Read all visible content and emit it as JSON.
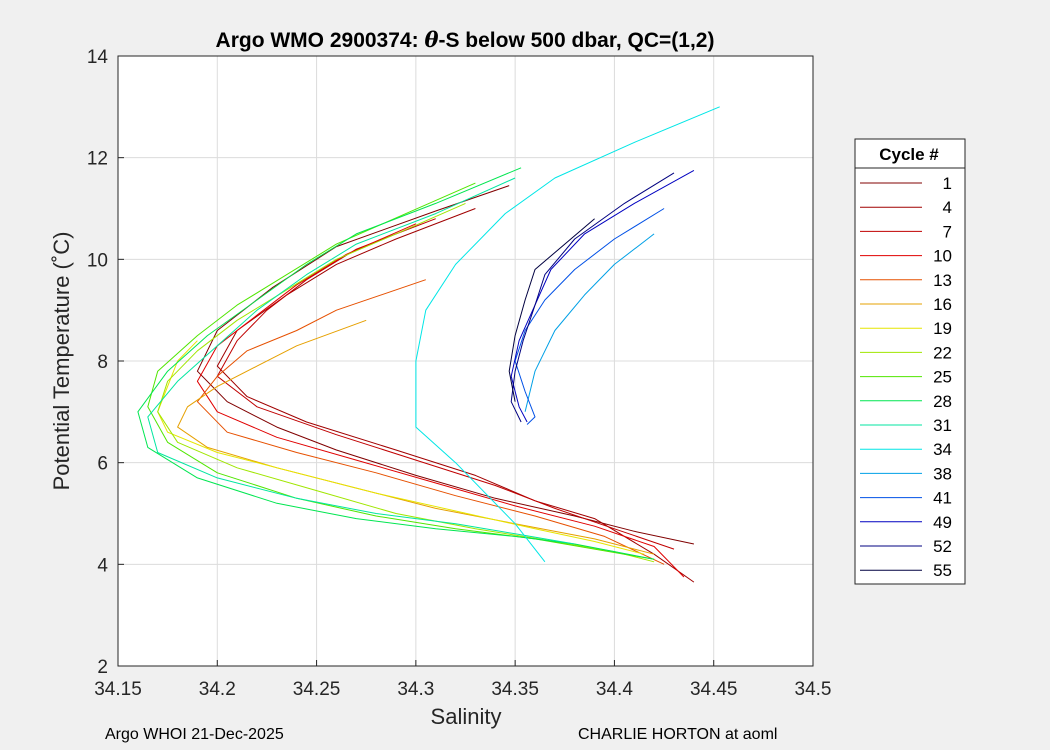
{
  "footer": {
    "left": "Argo WHOI 21-Dec-2025",
    "right": "CHARLIE HORTON at aoml"
  },
  "chart_data": {
    "type": "line",
    "title_prefix": "Argo WMO 2900374: ",
    "title_theta": "θ",
    "title_suffix": "-S below 500 dbar,  QC=(1,2)",
    "xlabel": "Salinity",
    "ylabel": "Potential Temperature (˚C)",
    "xlim": [
      34.15,
      34.5
    ],
    "ylim": [
      2,
      14
    ],
    "xticks": [
      "34.15",
      "34.2",
      "34.25",
      "34.3",
      "34.35",
      "34.4",
      "34.45",
      "34.5"
    ],
    "yticks": [
      "2",
      "4",
      "6",
      "8",
      "10",
      "12",
      "14"
    ],
    "grid": true,
    "legend": {
      "title": "Cycle #",
      "position": "right"
    },
    "series": [
      {
        "name": "1",
        "color": "#800000",
        "x": [
          34.347,
          34.31,
          34.26,
          34.228,
          34.2,
          34.19,
          34.205,
          34.23,
          34.26,
          34.3,
          34.34,
          34.38,
          34.41,
          34.44
        ],
        "y": [
          11.45,
          10.95,
          10.25,
          9.45,
          8.6,
          7.8,
          7.2,
          6.7,
          6.25,
          5.75,
          5.3,
          4.95,
          4.65,
          4.4
        ]
      },
      {
        "name": "4",
        "color": "#a00000",
        "x": [
          34.33,
          34.29,
          34.26,
          34.235,
          34.21,
          34.2,
          34.215,
          34.245,
          34.29,
          34.33,
          34.36,
          34.39,
          34.42,
          34.44
        ],
        "y": [
          11.0,
          10.4,
          9.9,
          9.3,
          8.6,
          7.9,
          7.3,
          6.8,
          6.25,
          5.75,
          5.25,
          4.9,
          4.2,
          3.65
        ]
      },
      {
        "name": "7",
        "color": "#c00000",
        "x": [
          34.31,
          34.27,
          34.245,
          34.225,
          34.21,
          34.2,
          34.22,
          34.26,
          34.3,
          34.34,
          34.37,
          34.4,
          34.43
        ],
        "y": [
          10.8,
          10.2,
          9.6,
          9.0,
          8.4,
          7.7,
          7.1,
          6.55,
          6.05,
          5.55,
          5.1,
          4.7,
          4.3
        ]
      },
      {
        "name": "10",
        "color": "#e00000",
        "x": [
          34.3,
          34.265,
          34.24,
          34.22,
          34.2,
          34.19,
          34.2,
          34.23,
          34.27,
          34.31,
          34.35,
          34.39,
          34.42,
          34.435
        ],
        "y": [
          10.7,
          10.1,
          9.5,
          8.9,
          8.3,
          7.6,
          7.0,
          6.5,
          6.05,
          5.6,
          5.15,
          4.75,
          4.35,
          3.75
        ]
      },
      {
        "name": "13",
        "color": "#e65000",
        "x": [
          34.305,
          34.26,
          34.24,
          34.215,
          34.2,
          34.19,
          34.205,
          34.24,
          34.28,
          34.32,
          34.36,
          34.395,
          34.425
        ],
        "y": [
          9.6,
          9.0,
          8.6,
          8.2,
          7.7,
          7.2,
          6.6,
          6.2,
          5.8,
          5.35,
          4.95,
          4.55,
          4.0
        ]
      },
      {
        "name": "16",
        "color": "#e6a000",
        "x": [
          34.275,
          34.24,
          34.22,
          34.2,
          34.185,
          34.18,
          34.195,
          34.23,
          34.27,
          34.31,
          34.35,
          34.39,
          34.42
        ],
        "y": [
          8.8,
          8.3,
          7.9,
          7.5,
          7.1,
          6.7,
          6.3,
          5.9,
          5.5,
          5.1,
          4.8,
          4.5,
          4.2
        ]
      },
      {
        "name": "19",
        "color": "#e6e600",
        "x": [
          34.19,
          34.18,
          34.175,
          34.17,
          34.175,
          34.2,
          34.24,
          34.28,
          34.32,
          34.36,
          34.39,
          34.415
        ],
        "y": [
          8.4,
          8.0,
          7.5,
          7.0,
          6.6,
          6.2,
          5.8,
          5.4,
          5.05,
          4.7,
          4.45,
          4.2
        ]
      },
      {
        "name": "22",
        "color": "#a0e600",
        "x": [
          34.325,
          34.29,
          34.26,
          34.235,
          34.21,
          34.19,
          34.175,
          34.17,
          34.18,
          34.21,
          34.25,
          34.29,
          34.33,
          34.37,
          34.4,
          34.42
        ],
        "y": [
          11.1,
          10.5,
          10.0,
          9.4,
          8.8,
          8.2,
          7.6,
          7.0,
          6.4,
          5.9,
          5.45,
          5.0,
          4.7,
          4.45,
          4.25,
          4.05
        ]
      },
      {
        "name": "25",
        "color": "#50e600",
        "x": [
          34.33,
          34.295,
          34.26,
          34.235,
          34.21,
          34.19,
          34.17,
          34.165,
          34.175,
          34.2,
          34.24,
          34.28,
          34.32,
          34.36,
          34.39,
          34.42
        ],
        "y": [
          11.5,
          10.9,
          10.3,
          9.7,
          9.1,
          8.5,
          7.8,
          7.1,
          6.4,
          5.8,
          5.3,
          4.95,
          4.7,
          4.5,
          4.3,
          4.1
        ]
      },
      {
        "name": "28",
        "color": "#00e650",
        "x": [
          34.353,
          34.31,
          34.27,
          34.245,
          34.22,
          34.195,
          34.175,
          34.16,
          34.165,
          34.19,
          34.23,
          34.27,
          34.31,
          34.35,
          34.38,
          34.4,
          34.42
        ],
        "y": [
          11.8,
          11.1,
          10.5,
          9.9,
          9.2,
          8.5,
          7.8,
          7.0,
          6.3,
          5.7,
          5.2,
          4.9,
          4.7,
          4.55,
          4.4,
          4.25,
          4.1
        ]
      },
      {
        "name": "31",
        "color": "#00e6a0",
        "x": [
          34.35,
          34.31,
          34.27,
          34.245,
          34.22,
          34.2,
          34.18,
          34.165,
          34.17,
          34.2,
          34.24,
          34.28,
          34.32,
          34.35,
          34.38
        ],
        "y": [
          11.6,
          10.9,
          10.3,
          9.7,
          9.0,
          8.3,
          7.6,
          6.9,
          6.2,
          5.7,
          5.3,
          5.0,
          4.8,
          4.6,
          4.4
        ]
      },
      {
        "name": "34",
        "color": "#00e6e6",
        "x": [
          34.453,
          34.41,
          34.37,
          34.345,
          34.32,
          34.305,
          34.3,
          34.3,
          34.32,
          34.35,
          34.365
        ],
        "y": [
          13.0,
          12.3,
          11.6,
          10.9,
          9.9,
          9.0,
          8.0,
          6.7,
          6.0,
          4.8,
          4.05
        ]
      },
      {
        "name": "38",
        "color": "#00a0e6",
        "x": [
          34.42,
          34.4,
          34.385,
          34.37,
          34.36,
          34.355
        ],
        "y": [
          10.5,
          9.9,
          9.3,
          8.6,
          7.8,
          7.0
        ]
      },
      {
        "name": "41",
        "color": "#0050e6",
        "x": [
          34.425,
          34.4,
          34.38,
          34.365,
          34.355,
          34.35,
          34.355,
          34.36,
          34.356
        ],
        "y": [
          11.0,
          10.4,
          9.8,
          9.2,
          8.6,
          8.0,
          7.4,
          6.9,
          6.75
        ]
      },
      {
        "name": "49",
        "color": "#0000c0",
        "x": [
          34.44,
          34.41,
          34.385,
          34.368,
          34.36,
          34.352,
          34.348,
          34.352,
          34.356
        ],
        "y": [
          11.75,
          11.1,
          10.5,
          9.8,
          9.1,
          8.4,
          7.7,
          7.1,
          6.8
        ]
      },
      {
        "name": "52",
        "color": "#000080",
        "x": [
          34.43,
          34.405,
          34.38,
          34.365,
          34.36,
          34.354,
          34.35,
          34.348,
          34.353
        ],
        "y": [
          11.7,
          11.1,
          10.4,
          9.7,
          9.1,
          8.4,
          7.8,
          7.2,
          6.8
        ]
      },
      {
        "name": "55",
        "color": "#000040",
        "x": [
          34.39,
          34.375,
          34.36,
          34.355,
          34.35,
          34.347,
          34.35
        ],
        "y": [
          10.8,
          10.3,
          9.8,
          9.2,
          8.5,
          7.8,
          7.2
        ]
      }
    ]
  }
}
